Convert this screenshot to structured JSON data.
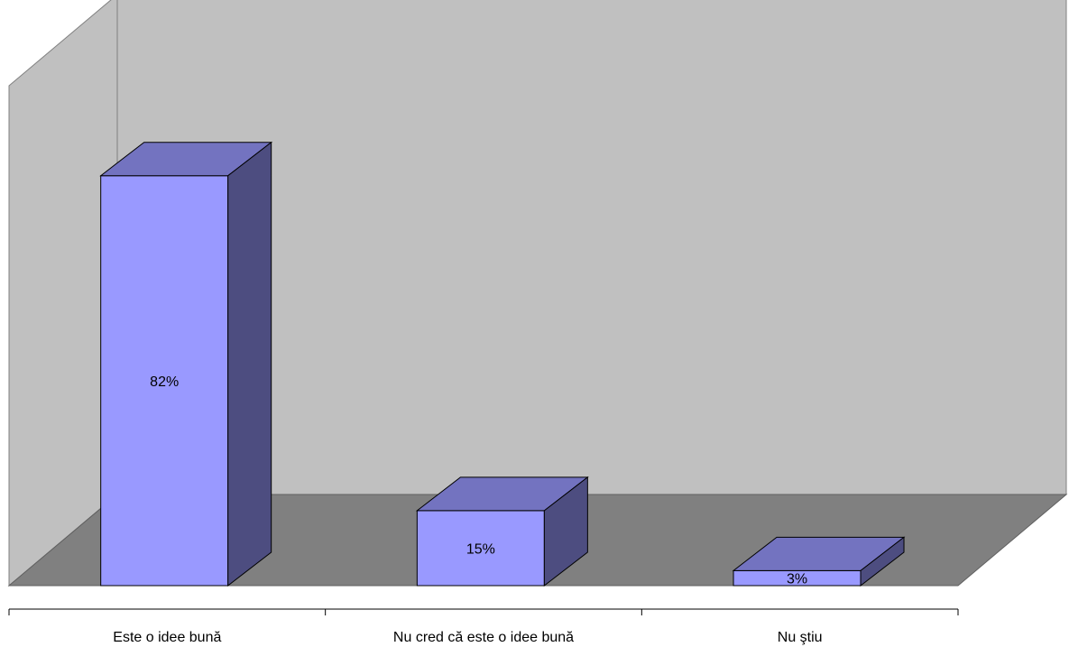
{
  "colors": {
    "back_wall": "#c0c0c0",
    "side_wall": "#c0c0c0",
    "floor": "#808080",
    "bar_front": "#9999ff",
    "bar_top": "#7373c0",
    "bar_side": "#4d4d80",
    "outline": "#000000",
    "text": "#000000",
    "background": "#ffffff"
  },
  "chart_data": {
    "type": "bar",
    "style": "3d-column",
    "title": "",
    "xlabel": "",
    "ylabel": "",
    "categories": [
      "Este o idee bună",
      "Nu cred că este o idee bună",
      "Nu ştiu"
    ],
    "values": [
      82,
      15,
      3
    ],
    "value_labels": [
      "82%",
      "15%",
      "3%"
    ],
    "ylim": [
      0,
      100
    ],
    "grid": false,
    "legend": "none"
  }
}
